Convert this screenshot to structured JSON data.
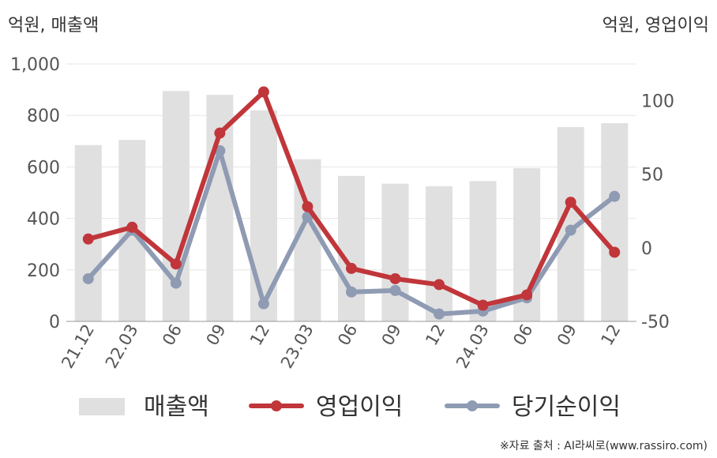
{
  "units": {
    "left": "억원, 매출액",
    "right": "억원, 영업이익"
  },
  "source": "※자료 출처 : AI라씨로(www.rassiro.com)",
  "chart_data": {
    "type": "bar",
    "categories": [
      "21.12",
      "22.03",
      "06",
      "09",
      "12",
      "23.03",
      "06",
      "09",
      "12",
      "24.03",
      "06",
      "09",
      "12"
    ],
    "left_axis": {
      "ylim": [
        0,
        1000
      ],
      "ticks": [
        "0",
        "200",
        "400",
        "600",
        "800",
        "1,000"
      ]
    },
    "right_axis": {
      "ylim": [
        -50,
        125
      ],
      "ticks": [
        "-50",
        "0",
        "50",
        "100"
      ]
    },
    "grid": true,
    "legend_position": "bottom",
    "series": [
      {
        "name": "매출액",
        "type": "bar",
        "axis": "left",
        "color": "#e0e0e0",
        "values": [
          685,
          705,
          895,
          880,
          820,
          630,
          565,
          535,
          525,
          545,
          595,
          755,
          770
        ]
      },
      {
        "name": "영업이익",
        "type": "line",
        "axis": "right",
        "color": "#c0363a",
        "values": [
          6,
          14,
          -11,
          78,
          106,
          28,
          -14,
          -21,
          -25,
          -39,
          -32,
          31,
          -3
        ]
      },
      {
        "name": "당기순이익",
        "type": "line",
        "axis": "right",
        "color": "#8f9bb3",
        "values": [
          -21,
          12,
          -24,
          66,
          -38,
          21,
          -30,
          -29,
          -45,
          -43,
          -34,
          12,
          35
        ]
      }
    ]
  }
}
